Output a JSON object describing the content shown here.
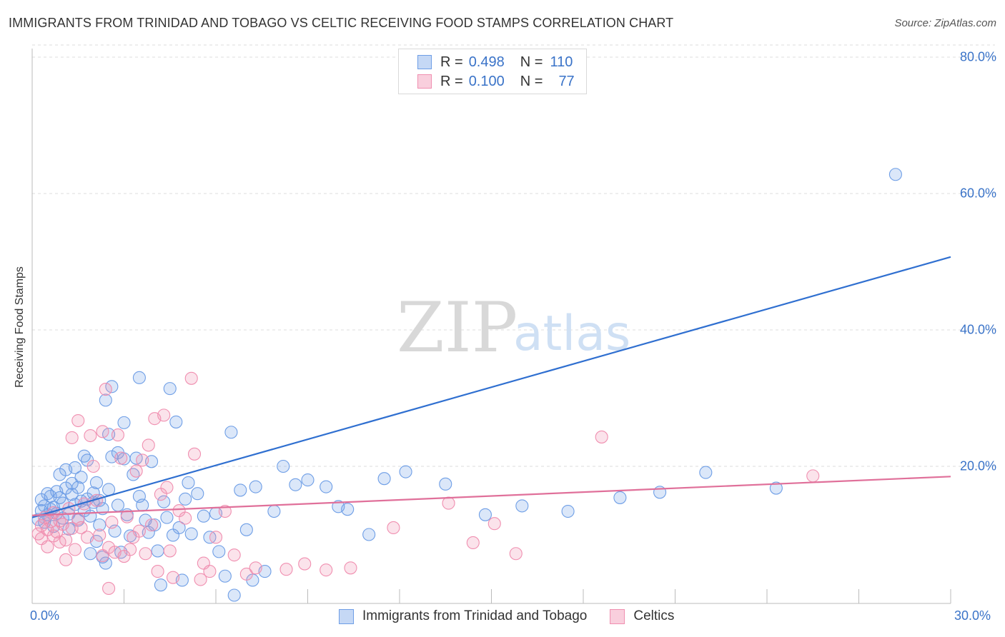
{
  "title": "IMMIGRANTS FROM TRINIDAD AND TOBAGO VS CELTIC RECEIVING FOOD STAMPS CORRELATION CHART",
  "source": "Source: ZipAtlas.com",
  "watermark": {
    "zip": "ZIP",
    "atlas": "atlas"
  },
  "legend": {
    "r_label": "R =",
    "n_label": "N =",
    "series": [
      {
        "name": "Immigrants from Trinidad and Tobago",
        "r": "0.498",
        "n": "110",
        "color": "#6e9ee6"
      },
      {
        "name": "Celtics",
        "r": "0.100",
        "n": "77",
        "color": "#f08fb0"
      }
    ]
  },
  "chart_data": {
    "type": "scatter",
    "title": "IMMIGRANTS FROM TRINIDAD AND TOBAGO VS CELTIC RECEIVING FOOD STAMPS CORRELATION CHART",
    "xlabel": "",
    "ylabel": "Receiving Food Stamps",
    "xlim": [
      0,
      30
    ],
    "ylim": [
      0,
      85
    ],
    "x_ticks": [
      "0.0%",
      "30.0%"
    ],
    "y_ticks": [
      {
        "value": 20,
        "label": "20.0%"
      },
      {
        "value": 40,
        "label": "40.0%"
      },
      {
        "value": 60,
        "label": "60.0%"
      },
      {
        "value": 80,
        "label": "80.0%"
      }
    ],
    "series": [
      {
        "name": "Immigrants from Trinidad and Tobago",
        "color": "#6e9ee6",
        "line_color": "#2f6fd0",
        "trendline": {
          "x0": 0,
          "y0": 12.5,
          "x1": 30,
          "y1": 50.7
        },
        "points": [
          [
            0.2,
            12.2
          ],
          [
            0.3,
            13.5
          ],
          [
            0.3,
            15.1
          ],
          [
            0.4,
            11.8
          ],
          [
            0.4,
            14.2
          ],
          [
            0.5,
            16.0
          ],
          [
            0.5,
            12.9
          ],
          [
            0.6,
            13.7
          ],
          [
            0.6,
            15.6
          ],
          [
            0.7,
            14.0
          ],
          [
            0.7,
            11.2
          ],
          [
            0.8,
            16.3
          ],
          [
            0.8,
            13.1
          ],
          [
            0.9,
            18.8
          ],
          [
            0.9,
            15.4
          ],
          [
            1.0,
            14.6
          ],
          [
            1.0,
            12.4
          ],
          [
            1.1,
            19.5
          ],
          [
            1.1,
            16.8
          ],
          [
            1.2,
            13.0
          ],
          [
            1.2,
            10.8
          ],
          [
            1.3,
            15.9
          ],
          [
            1.3,
            17.5
          ],
          [
            1.4,
            14.4
          ],
          [
            1.4,
            19.8
          ],
          [
            1.5,
            12.1
          ],
          [
            1.5,
            16.9
          ],
          [
            1.6,
            18.4
          ],
          [
            1.6,
            14.9
          ],
          [
            1.7,
            13.5
          ],
          [
            1.7,
            21.5
          ],
          [
            1.8,
            15.2
          ],
          [
            1.8,
            20.9
          ],
          [
            1.9,
            7.2
          ],
          [
            1.9,
            12.7
          ],
          [
            2.0,
            16.1
          ],
          [
            2.0,
            14.7
          ],
          [
            2.1,
            9.0
          ],
          [
            2.1,
            17.6
          ],
          [
            2.2,
            11.4
          ],
          [
            2.2,
            15.0
          ],
          [
            2.3,
            6.7
          ],
          [
            2.3,
            13.8
          ],
          [
            2.4,
            29.7
          ],
          [
            2.4,
            5.8
          ],
          [
            2.5,
            24.7
          ],
          [
            2.5,
            16.6
          ],
          [
            2.6,
            21.4
          ],
          [
            2.6,
            31.7
          ],
          [
            2.7,
            10.5
          ],
          [
            2.8,
            22.0
          ],
          [
            2.8,
            14.3
          ],
          [
            2.9,
            7.4
          ],
          [
            3.0,
            21.1
          ],
          [
            3.0,
            26.4
          ],
          [
            3.1,
            12.9
          ],
          [
            3.2,
            9.8
          ],
          [
            3.3,
            18.8
          ],
          [
            3.4,
            21.2
          ],
          [
            3.5,
            33.0
          ],
          [
            3.5,
            15.6
          ],
          [
            3.6,
            14.3
          ],
          [
            3.7,
            12.1
          ],
          [
            3.8,
            10.3
          ],
          [
            3.9,
            20.7
          ],
          [
            4.0,
            11.4
          ],
          [
            4.1,
            7.6
          ],
          [
            4.2,
            2.6
          ],
          [
            4.3,
            14.8
          ],
          [
            4.4,
            12.5
          ],
          [
            4.5,
            31.4
          ],
          [
            4.6,
            9.9
          ],
          [
            4.7,
            26.5
          ],
          [
            4.8,
            11.0
          ],
          [
            4.9,
            3.3
          ],
          [
            5.0,
            15.2
          ],
          [
            5.1,
            17.6
          ],
          [
            5.2,
            10.1
          ],
          [
            5.4,
            16.0
          ],
          [
            5.6,
            12.7
          ],
          [
            5.8,
            9.6
          ],
          [
            6.0,
            13.1
          ],
          [
            6.1,
            7.5
          ],
          [
            6.3,
            3.9
          ],
          [
            6.5,
            25.0
          ],
          [
            6.6,
            1.1
          ],
          [
            6.8,
            16.5
          ],
          [
            7.0,
            10.7
          ],
          [
            7.2,
            3.3
          ],
          [
            7.3,
            17.0
          ],
          [
            7.6,
            4.6
          ],
          [
            7.9,
            13.4
          ],
          [
            8.2,
            20.0
          ],
          [
            8.6,
            17.3
          ],
          [
            9.0,
            18.0
          ],
          [
            9.6,
            17.0
          ],
          [
            10.0,
            14.1
          ],
          [
            10.3,
            13.7
          ],
          [
            11.0,
            10.0
          ],
          [
            11.5,
            18.2
          ],
          [
            12.2,
            19.2
          ],
          [
            13.5,
            17.4
          ],
          [
            14.8,
            12.9
          ],
          [
            16.0,
            14.2
          ],
          [
            17.5,
            13.4
          ],
          [
            19.2,
            15.4
          ],
          [
            20.5,
            16.2
          ],
          [
            22.0,
            19.1
          ],
          [
            24.3,
            16.8
          ],
          [
            28.2,
            62.8
          ]
        ]
      },
      {
        "name": "Celtics",
        "color": "#f08fb0",
        "line_color": "#e0709a",
        "trendline": {
          "x0": 0,
          "y0": 12.8,
          "x1": 30,
          "y1": 18.5
        },
        "points": [
          [
            0.2,
            10.1
          ],
          [
            0.3,
            11.3
          ],
          [
            0.3,
            9.4
          ],
          [
            0.4,
            12.5
          ],
          [
            0.5,
            10.7
          ],
          [
            0.5,
            8.2
          ],
          [
            0.6,
            11.9
          ],
          [
            0.7,
            9.8
          ],
          [
            0.7,
            13.2
          ],
          [
            0.8,
            10.4
          ],
          [
            0.9,
            12.0
          ],
          [
            0.9,
            8.9
          ],
          [
            1.0,
            11.5
          ],
          [
            1.1,
            6.3
          ],
          [
            1.1,
            9.2
          ],
          [
            1.2,
            13.8
          ],
          [
            1.3,
            10.9
          ],
          [
            1.3,
            24.2
          ],
          [
            1.4,
            7.8
          ],
          [
            1.5,
            12.3
          ],
          [
            1.5,
            26.7
          ],
          [
            1.6,
            11.0
          ],
          [
            1.7,
            14.5
          ],
          [
            1.8,
            9.6
          ],
          [
            1.9,
            24.5
          ],
          [
            2.0,
            20.0
          ],
          [
            2.1,
            15.0
          ],
          [
            2.2,
            9.9
          ],
          [
            2.3,
            25.1
          ],
          [
            2.3,
            6.9
          ],
          [
            2.4,
            31.3
          ],
          [
            2.5,
            8.1
          ],
          [
            2.5,
            2.1
          ],
          [
            2.6,
            11.8
          ],
          [
            2.7,
            7.4
          ],
          [
            2.8,
            24.6
          ],
          [
            2.9,
            21.2
          ],
          [
            3.0,
            6.8
          ],
          [
            3.1,
            12.6
          ],
          [
            3.2,
            7.8
          ],
          [
            3.3,
            9.6
          ],
          [
            3.4,
            19.3
          ],
          [
            3.5,
            10.5
          ],
          [
            3.6,
            20.9
          ],
          [
            3.7,
            7.2
          ],
          [
            3.8,
            23.1
          ],
          [
            3.9,
            11.4
          ],
          [
            4.0,
            27.0
          ],
          [
            4.1,
            4.6
          ],
          [
            4.2,
            15.9
          ],
          [
            4.3,
            27.5
          ],
          [
            4.4,
            16.9
          ],
          [
            4.5,
            7.6
          ],
          [
            4.6,
            3.7
          ],
          [
            4.8,
            13.5
          ],
          [
            5.0,
            12.4
          ],
          [
            5.2,
            32.9
          ],
          [
            5.3,
            21.8
          ],
          [
            5.5,
            3.4
          ],
          [
            5.6,
            5.8
          ],
          [
            5.8,
            4.6
          ],
          [
            6.0,
            9.6
          ],
          [
            6.3,
            13.4
          ],
          [
            6.6,
            7.0
          ],
          [
            7.0,
            4.2
          ],
          [
            7.3,
            5.1
          ],
          [
            8.3,
            4.9
          ],
          [
            8.9,
            5.7
          ],
          [
            9.6,
            4.8
          ],
          [
            10.4,
            5.1
          ],
          [
            11.8,
            11.0
          ],
          [
            13.6,
            14.6
          ],
          [
            14.4,
            8.8
          ],
          [
            15.1,
            11.6
          ],
          [
            15.8,
            7.2
          ],
          [
            18.6,
            24.3
          ],
          [
            25.5,
            18.6
          ]
        ]
      }
    ]
  }
}
